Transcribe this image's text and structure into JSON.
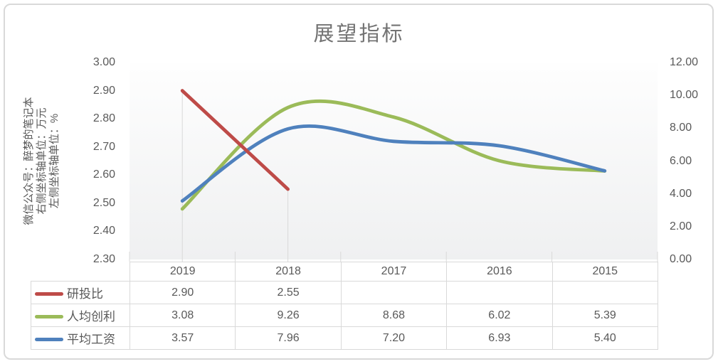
{
  "chart_data": {
    "type": "line",
    "title": "展望指标",
    "categories": [
      "2019",
      "2018",
      "2017",
      "2016",
      "2015"
    ],
    "series": [
      {
        "name": "研投比",
        "color": "#be4b48",
        "axis": "left",
        "values": [
          2.9,
          2.55,
          null,
          null,
          null
        ],
        "table_values": [
          "2.90",
          "2.55",
          "",
          "",
          ""
        ],
        "droplines": true
      },
      {
        "name": "人均创利",
        "color": "#9bbb59",
        "axis": "right",
        "values": [
          3.08,
          9.26,
          8.68,
          6.02,
          5.39
        ],
        "table_values": [
          "3.08",
          "9.26",
          "8.68",
          "6.02",
          "5.39"
        ],
        "droplines": false
      },
      {
        "name": "平均工资",
        "color": "#4f81bd",
        "axis": "right",
        "values": [
          3.57,
          7.96,
          7.2,
          6.93,
          5.4
        ],
        "table_values": [
          "3.57",
          "7.96",
          "7.20",
          "6.93",
          "5.40"
        ],
        "droplines": false
      }
    ],
    "left_axis": {
      "min": 2.3,
      "max": 3.0,
      "tick_labels": [
        "3.00",
        "2.90",
        "2.80",
        "2.70",
        "2.60",
        "2.50",
        "2.40",
        "2.30"
      ]
    },
    "right_axis": {
      "min": 0.0,
      "max": 12.0,
      "tick_labels": [
        "12.00",
        "10.00",
        "8.00",
        "6.00",
        "4.00",
        "2.00",
        "0.00"
      ]
    },
    "axis_notes": {
      "watermark": "微信公众号：醉梦的笔记本",
      "right_unit": "右侧坐标轴单位：万元",
      "left_unit": "左侧坐标轴单位：%"
    },
    "smooth_lines": true,
    "grid": "off",
    "legend_position": "table-left",
    "colors": {
      "border": "#d9d9d9",
      "text": "#595959",
      "title_text": "#737373",
      "plot_bg_top": "#fefefe",
      "plot_bg_bottom": "#eff0f1"
    }
  }
}
